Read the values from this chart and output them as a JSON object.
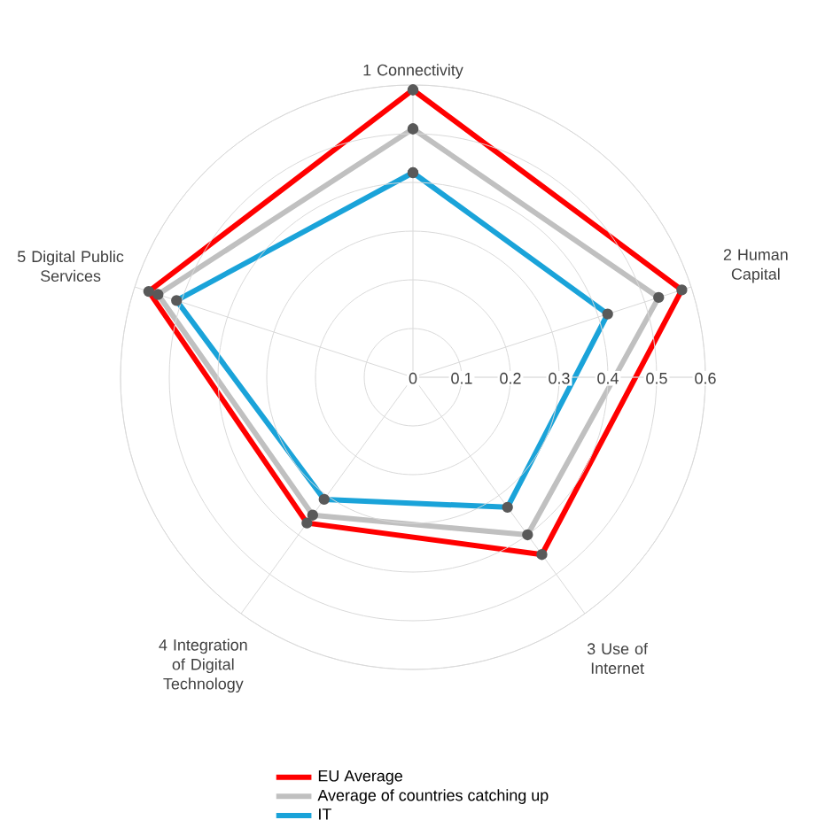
{
  "chart_data": {
    "type": "radar",
    "categories": [
      "1 Connectivity",
      "2 Human Capital",
      "3 Use of Internet",
      "4 Integration of Digital Technology",
      "5 Digital Public Services"
    ],
    "series": [
      {
        "name": "EU Average",
        "color": "#ff0000",
        "values": [
          0.59,
          0.58,
          0.45,
          0.37,
          0.57
        ]
      },
      {
        "name": "Average of countries catching up",
        "color": "#c0c0c0",
        "values": [
          0.51,
          0.53,
          0.4,
          0.35,
          0.55
        ]
      },
      {
        "name": "IT",
        "color": "#1aa3d9",
        "values": [
          0.42,
          0.42,
          0.33,
          0.31,
          0.51
        ]
      }
    ],
    "ylim": [
      0,
      0.6
    ],
    "yticks": [
      0,
      0.1,
      0.2,
      0.3,
      0.4,
      0.5,
      0.6
    ],
    "grid": true,
    "legend": "bottom",
    "marker": "circle",
    "line_style": "solid"
  }
}
